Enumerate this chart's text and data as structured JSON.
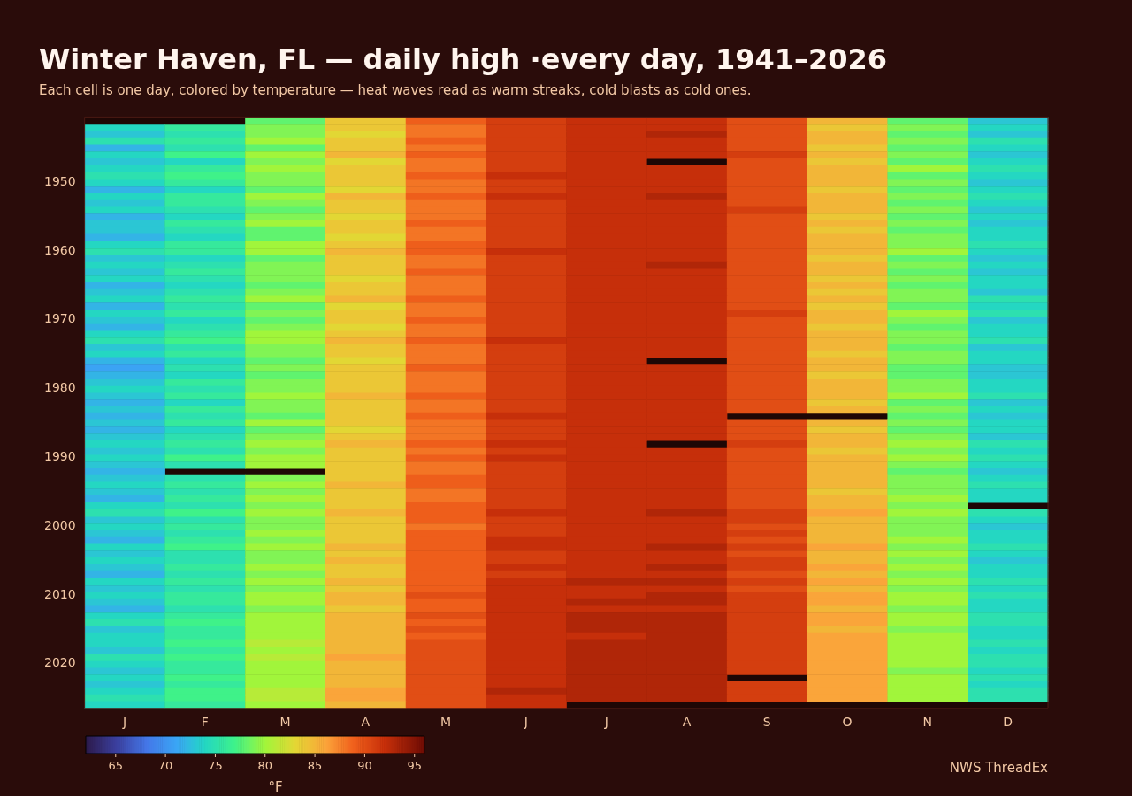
{
  "chart_data": {
    "type": "heatmap",
    "title": "Winter Haven, FL — daily high ·every day, 1941–2026",
    "subtitle": "Each cell is one day, colored by temperature — heat waves read as warm streaks, cold blasts as cold ones.",
    "clabel": "°F",
    "annotations": [
      "NWS ThreadEx"
    ],
    "clim": [
      62,
      96
    ],
    "cticks": [
      65,
      70,
      75,
      80,
      85,
      90,
      95
    ],
    "categories": [
      "J",
      "F",
      "M",
      "A",
      "M",
      "J",
      "J",
      "A",
      "S",
      "O",
      "N",
      "D"
    ],
    "y_categories": [
      null,
      null,
      null,
      null,
      null,
      null,
      null,
      null,
      null,
      "1950",
      null,
      null,
      null,
      null,
      null,
      null,
      null,
      null,
      null,
      "1960",
      null,
      null,
      null,
      null,
      null,
      null,
      null,
      null,
      null,
      "1970",
      null,
      null,
      null,
      null,
      null,
      null,
      null,
      null,
      null,
      "1980",
      null,
      null,
      null,
      null,
      null,
      null,
      null,
      null,
      null,
      "1990",
      null,
      null,
      null,
      null,
      null,
      null,
      null,
      null,
      null,
      "2000",
      null,
      null,
      null,
      null,
      null,
      null,
      null,
      null,
      null,
      "2010",
      null,
      null,
      null,
      null,
      null,
      null,
      null,
      null,
      null,
      "2020",
      null,
      null,
      null,
      null,
      null,
      null
    ],
    "cells": [
      [
        null,
        null,
        78,
        84,
        89,
        91,
        92,
        92,
        90,
        85,
        78,
        73
      ],
      [
        74,
        76,
        79,
        84,
        88,
        91,
        92,
        92,
        90,
        84,
        79,
        74
      ],
      [
        73,
        75,
        79,
        83,
        88,
        91,
        92,
        93,
        90,
        85,
        78,
        73
      ],
      [
        75,
        76,
        80,
        84,
        89,
        91,
        92,
        92,
        90,
        85,
        79,
        75
      ],
      [
        72,
        75,
        78,
        84,
        88,
        91,
        92,
        92,
        90,
        84,
        78,
        74
      ],
      [
        74,
        77,
        80,
        85,
        89,
        91,
        92,
        92,
        91,
        85,
        79,
        73
      ],
      [
        73,
        74,
        79,
        83,
        88,
        91,
        92,
        null,
        90,
        84,
        78,
        74
      ],
      [
        74,
        76,
        80,
        84,
        88,
        91,
        92,
        92,
        90,
        85,
        80,
        75
      ],
      [
        75,
        77,
        79,
        84,
        89,
        92,
        92,
        92,
        90,
        85,
        78,
        74
      ],
      [
        74,
        76,
        79,
        84,
        88,
        91,
        92,
        92,
        90,
        85,
        79,
        73
      ],
      [
        72,
        74,
        78,
        83,
        88,
        91,
        92,
        92,
        90,
        84,
        78,
        74
      ],
      [
        74,
        76,
        80,
        85,
        89,
        92,
        92,
        93,
        90,
        85,
        79,
        75
      ],
      [
        73,
        76,
        79,
        84,
        88,
        91,
        92,
        92,
        90,
        85,
        78,
        74
      ],
      [
        74,
        75,
        78,
        84,
        88,
        91,
        92,
        92,
        91,
        85,
        79,
        73
      ],
      [
        72,
        74,
        79,
        83,
        88,
        91,
        92,
        92,
        90,
        84,
        78,
        74
      ],
      [
        73,
        76,
        80,
        84,
        89,
        91,
        92,
        92,
        90,
        85,
        79,
        73
      ],
      [
        73,
        75,
        78,
        84,
        88,
        91,
        92,
        92,
        90,
        84,
        78,
        74
      ],
      [
        72,
        74,
        78,
        83,
        88,
        91,
        92,
        92,
        90,
        85,
        79,
        74
      ],
      [
        74,
        76,
        80,
        84,
        89,
        91,
        92,
        92,
        90,
        85,
        79,
        75
      ],
      [
        75,
        76,
        80,
        85,
        89,
        92,
        92,
        92,
        90,
        85,
        80,
        74
      ],
      [
        73,
        74,
        78,
        84,
        88,
        91,
        92,
        92,
        90,
        84,
        78,
        73
      ],
      [
        74,
        75,
        79,
        84,
        88,
        91,
        92,
        93,
        90,
        85,
        79,
        74
      ],
      [
        73,
        76,
        79,
        84,
        89,
        91,
        92,
        92,
        90,
        85,
        78,
        73
      ],
      [
        74,
        75,
        79,
        83,
        88,
        91,
        92,
        92,
        90,
        84,
        79,
        74
      ],
      [
        72,
        74,
        78,
        84,
        88,
        91,
        92,
        92,
        90,
        85,
        78,
        74
      ],
      [
        73,
        75,
        79,
        84,
        88,
        91,
        92,
        92,
        90,
        84,
        79,
        73
      ],
      [
        74,
        76,
        80,
        85,
        89,
        91,
        92,
        92,
        90,
        85,
        79,
        75
      ],
      [
        72,
        75,
        78,
        83,
        88,
        91,
        92,
        92,
        90,
        84,
        78,
        74
      ],
      [
        74,
        76,
        79,
        84,
        88,
        91,
        92,
        92,
        91,
        85,
        80,
        75
      ],
      [
        73,
        74,
        78,
        84,
        89,
        91,
        92,
        92,
        90,
        85,
        79,
        73
      ],
      [
        72,
        75,
        79,
        83,
        88,
        91,
        92,
        92,
        90,
        84,
        78,
        74
      ],
      [
        74,
        76,
        80,
        84,
        88,
        91,
        92,
        92,
        90,
        85,
        79,
        74
      ],
      [
        75,
        77,
        80,
        85,
        89,
        92,
        92,
        92,
        90,
        85,
        79,
        75
      ],
      [
        73,
        75,
        79,
        84,
        88,
        91,
        92,
        92,
        90,
        85,
        78,
        73
      ],
      [
        74,
        76,
        79,
        84,
        88,
        91,
        92,
        92,
        90,
        84,
        79,
        74
      ],
      [
        72,
        74,
        78,
        83,
        88,
        91,
        92,
        null,
        90,
        85,
        79,
        74
      ],
      [
        71,
        75,
        79,
        84,
        89,
        91,
        92,
        92,
        90,
        85,
        78,
        73
      ],
      [
        72,
        74,
        78,
        84,
        88,
        91,
        92,
        92,
        90,
        84,
        78,
        73
      ],
      [
        73,
        76,
        79,
        84,
        88,
        91,
        92,
        92,
        90,
        85,
        79,
        74
      ],
      [
        74,
        75,
        79,
        84,
        88,
        91,
        92,
        92,
        90,
        85,
        79,
        74
      ],
      [
        73,
        76,
        80,
        85,
        89,
        91,
        92,
        92,
        90,
        85,
        80,
        75
      ],
      [
        72,
        74,
        79,
        84,
        88,
        91,
        92,
        92,
        90,
        84,
        78,
        73
      ],
      [
        73,
        76,
        79,
        84,
        88,
        91,
        92,
        92,
        90,
        85,
        79,
        74
      ],
      [
        72,
        75,
        78,
        84,
        89,
        92,
        92,
        92,
        null,
        null,
        78,
        73
      ],
      [
        73,
        76,
        80,
        84,
        88,
        91,
        92,
        92,
        90,
        85,
        79,
        74
      ],
      [
        72,
        74,
        78,
        83,
        88,
        91,
        92,
        92,
        90,
        84,
        78,
        74
      ],
      [
        73,
        75,
        79,
        84,
        88,
        91,
        92,
        92,
        90,
        85,
        79,
        73
      ],
      [
        74,
        76,
        80,
        85,
        89,
        92,
        92,
        null,
        91,
        85,
        80,
        75
      ],
      [
        73,
        75,
        79,
        84,
        88,
        91,
        92,
        92,
        90,
        84,
        79,
        74
      ],
      [
        74,
        77,
        80,
        84,
        89,
        92,
        92,
        92,
        90,
        85,
        80,
        75
      ],
      [
        73,
        75,
        80,
        84,
        88,
        91,
        92,
        92,
        90,
        85,
        79,
        74
      ],
      [
        72,
        null,
        null,
        84,
        88,
        91,
        92,
        92,
        90,
        85,
        78,
        73
      ],
      [
        73,
        75,
        79,
        84,
        89,
        91,
        92,
        92,
        90,
        85,
        79,
        74
      ],
      [
        74,
        76,
        80,
        85,
        89,
        91,
        92,
        92,
        90,
        85,
        79,
        75
      ],
      [
        73,
        75,
        79,
        84,
        88,
        91,
        92,
        92,
        90,
        84,
        79,
        74
      ],
      [
        72,
        76,
        80,
        84,
        88,
        91,
        92,
        92,
        90,
        85,
        80,
        74
      ],
      [
        74,
        75,
        79,
        84,
        89,
        91,
        92,
        92,
        90,
        85,
        79,
        null
      ],
      [
        75,
        77,
        80,
        85,
        89,
        92,
        92,
        93,
        91,
        86,
        80,
        75
      ],
      [
        73,
        75,
        79,
        84,
        89,
        91,
        92,
        92,
        91,
        85,
        79,
        74
      ],
      [
        74,
        76,
        79,
        84,
        88,
        91,
        92,
        92,
        90,
        85,
        79,
        73
      ],
      [
        73,
        75,
        80,
        84,
        89,
        91,
        92,
        92,
        91,
        85,
        79,
        74
      ],
      [
        72,
        76,
        79,
        84,
        89,
        92,
        92,
        92,
        90,
        85,
        80,
        74
      ],
      [
        74,
        77,
        80,
        85,
        89,
        92,
        92,
        93,
        91,
        86,
        79,
        75
      ],
      [
        73,
        75,
        79,
        84,
        89,
        91,
        92,
        92,
        90,
        85,
        80,
        74
      ],
      [
        74,
        75,
        79,
        85,
        89,
        91,
        92,
        92,
        91,
        85,
        79,
        73
      ],
      [
        73,
        76,
        80,
        84,
        89,
        92,
        92,
        93,
        91,
        86,
        80,
        74
      ],
      [
        72,
        75,
        79,
        84,
        89,
        91,
        92,
        92,
        90,
        85,
        79,
        74
      ],
      [
        74,
        76,
        80,
        85,
        89,
        92,
        93,
        93,
        91,
        86,
        80,
        75
      ],
      [
        73,
        75,
        79,
        84,
        89,
        92,
        92,
        92,
        90,
        85,
        79,
        74
      ],
      [
        74,
        76,
        80,
        85,
        90,
        92,
        92,
        93,
        91,
        86,
        80,
        75
      ],
      [
        73,
        76,
        80,
        85,
        89,
        92,
        93,
        93,
        91,
        86,
        80,
        74
      ],
      [
        72,
        75,
        79,
        84,
        89,
        92,
        92,
        92,
        91,
        85,
        79,
        74
      ],
      [
        74,
        76,
        80,
        85,
        90,
        92,
        93,
        93,
        91,
        86,
        80,
        75
      ],
      [
        75,
        77,
        80,
        85,
        89,
        92,
        93,
        93,
        91,
        86,
        80,
        75
      ],
      [
        73,
        76,
        80,
        85,
        90,
        92,
        93,
        93,
        91,
        85,
        79,
        74
      ],
      [
        74,
        76,
        80,
        85,
        89,
        92,
        92,
        93,
        91,
        86,
        80,
        74
      ],
      [
        74,
        77,
        81,
        85,
        90,
        92,
        93,
        93,
        91,
        86,
        80,
        75
      ],
      [
        73,
        76,
        80,
        85,
        90,
        92,
        93,
        93,
        91,
        86,
        80,
        74
      ],
      [
        75,
        77,
        81,
        86,
        90,
        92,
        93,
        93,
        91,
        86,
        80,
        75
      ],
      [
        74,
        76,
        80,
        85,
        90,
        92,
        93,
        93,
        91,
        86,
        80,
        75
      ],
      [
        73,
        76,
        80,
        85,
        90,
        92,
        93,
        93,
        91,
        86,
        79,
        74
      ],
      [
        74,
        77,
        80,
        85,
        90,
        92,
        93,
        93,
        null,
        86,
        80,
        75
      ],
      [
        73,
        76,
        80,
        85,
        90,
        92,
        93,
        93,
        91,
        86,
        80,
        74
      ],
      [
        74,
        77,
        81,
        86,
        90,
        93,
        93,
        93,
        91,
        86,
        80,
        75
      ],
      [
        75,
        77,
        81,
        86,
        90,
        92,
        93,
        93,
        91,
        86,
        80,
        75
      ],
      [
        74,
        76,
        80,
        85,
        90,
        92,
        null,
        null,
        null,
        null,
        null,
        null
      ]
    ]
  }
}
